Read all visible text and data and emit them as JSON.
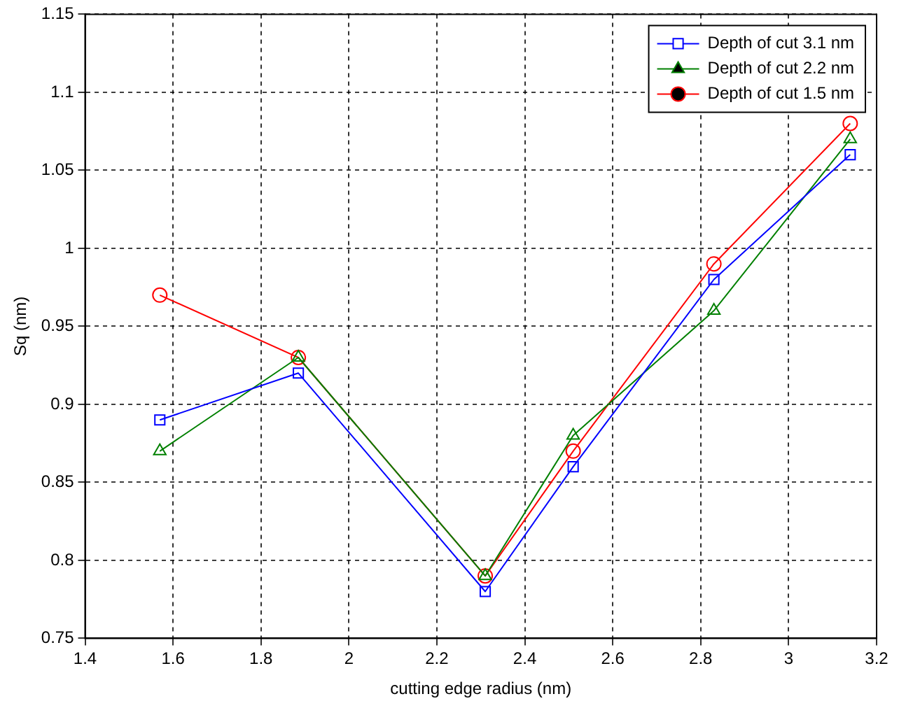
{
  "chart_data": {
    "type": "line",
    "xlabel": "cutting edge radius (nm)",
    "ylabel": "Sq (nm)",
    "x": [
      1.57,
      1.885,
      2.31,
      2.51,
      2.83,
      3.14
    ],
    "series": [
      {
        "name": "Depth of cut 3.1 nm",
        "color": "#0000ff",
        "marker": "square",
        "values": [
          0.89,
          0.92,
          0.78,
          0.86,
          0.98,
          1.06
        ]
      },
      {
        "name": "Depth of cut 2.2 nm",
        "color": "#008000",
        "marker": "triangle",
        "values": [
          0.87,
          0.93,
          0.79,
          0.88,
          0.96,
          1.07
        ]
      },
      {
        "name": "Depth of cut 1.5 nm",
        "color": "#ff0000",
        "marker": "circle",
        "values": [
          0.97,
          0.93,
          0.79,
          0.87,
          0.99,
          1.08
        ]
      }
    ],
    "xlim": [
      1.4,
      3.2
    ],
    "xticks": [
      1.4,
      1.6,
      1.8,
      2,
      2.2,
      2.4,
      2.6,
      2.8,
      3,
      3.2
    ],
    "ylim": [
      0.75,
      1.15
    ],
    "yticks": [
      0.75,
      0.8,
      0.85,
      0.9,
      0.95,
      1,
      1.05,
      1.1,
      1.15
    ],
    "grid": true,
    "legend": "top right",
    "line_style": "solid"
  }
}
